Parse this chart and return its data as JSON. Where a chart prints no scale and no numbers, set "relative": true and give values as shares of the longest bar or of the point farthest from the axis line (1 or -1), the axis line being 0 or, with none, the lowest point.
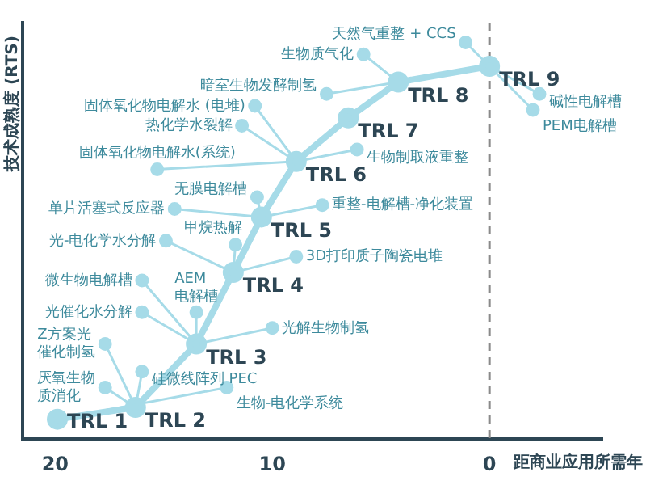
{
  "chart_data": {
    "type": "line",
    "relative": true,
    "ylabel": "技术成熟度 (RTS)",
    "xlabel": "距商业应用所需年",
    "xlim": [
      21.5,
      -5.2
    ],
    "xticks": [
      20,
      10,
      0
    ],
    "grid": false,
    "legend": false,
    "marker": "circle",
    "line_style": "solid",
    "ref_lines": [
      {
        "axis": "x",
        "value": 0,
        "color": "#8a8a8a",
        "line_style": "dashed"
      }
    ],
    "series": [
      {
        "color": "#a6dbe8",
        "x": [
          19.9,
          16.3,
          13.5,
          11.8,
          10.5,
          8.9,
          6.5,
          4.2,
          0
        ],
        "values": [
          0.05,
          0.08,
          0.24,
          0.42,
          0.56,
          0.7,
          0.81,
          0.9,
          0.94
        ]
      },
      {
        "color": "#a6dbe8",
        "x": [
          0,
          1.1
        ],
        "values": [
          0.94,
          1.0
        ]
      },
      {
        "color": "#a6dbe8",
        "x": [
          0,
          -2.3
        ],
        "values": [
          0.94,
          0.87
        ]
      },
      {
        "color": "#a6dbe8",
        "x": [
          0,
          -2.0
        ],
        "values": [
          0.94,
          0.83
        ]
      },
      {
        "color": "#a6dbe8",
        "x": [
          4.2,
          5.8
        ],
        "values": [
          0.9,
          0.97
        ]
      },
      {
        "color": "#a6dbe8",
        "x": [
          4.2,
          7.5
        ],
        "values": [
          0.9,
          0.87
        ]
      },
      {
        "color": "#a6dbe8",
        "x": [
          8.9,
          6.1
        ],
        "values": [
          0.7,
          0.73
        ]
      },
      {
        "color": "#a6dbe8",
        "x": [
          10.5,
          7.7
        ],
        "values": [
          0.56,
          0.59
        ]
      },
      {
        "color": "#a6dbe8",
        "x": [
          8.9,
          10.8
        ],
        "values": [
          0.7,
          0.84
        ]
      },
      {
        "color": "#a6dbe8",
        "x": [
          8.9,
          11.4
        ],
        "values": [
          0.7,
          0.79
        ]
      },
      {
        "color": "#a6dbe8",
        "x": [
          8.9,
          15.3
        ],
        "values": [
          0.7,
          0.68
        ]
      },
      {
        "color": "#a6dbe8",
        "x": [
          10.5,
          10.7
        ],
        "values": [
          0.56,
          0.61
        ]
      },
      {
        "color": "#a6dbe8",
        "x": [
          10.5,
          14.5
        ],
        "values": [
          0.56,
          0.58
        ]
      },
      {
        "color": "#a6dbe8",
        "x": [
          11.8,
          14.9
        ],
        "values": [
          0.42,
          0.5
        ]
      },
      {
        "color": "#a6dbe8",
        "x": [
          11.8,
          11.7
        ],
        "values": [
          0.42,
          0.49
        ]
      },
      {
        "color": "#a6dbe8",
        "x": [
          11.8,
          8.9
        ],
        "values": [
          0.42,
          0.46
        ]
      },
      {
        "color": "#a6dbe8",
        "x": [
          13.5,
          16.0
        ],
        "values": [
          0.24,
          0.4
        ]
      },
      {
        "color": "#a6dbe8",
        "x": [
          13.5,
          16.0
        ],
        "values": [
          0.24,
          0.32
        ]
      },
      {
        "color": "#a6dbe8",
        "x": [
          13.5,
          13.5
        ],
        "values": [
          0.24,
          0.32
        ]
      },
      {
        "color": "#a6dbe8",
        "x": [
          13.5,
          10.0
        ],
        "values": [
          0.24,
          0.28
        ]
      },
      {
        "color": "#a6dbe8",
        "x": [
          16.3,
          17.7
        ],
        "values": [
          0.08,
          0.24
        ]
      },
      {
        "color": "#a6dbe8",
        "x": [
          16.3,
          16.0
        ],
        "values": [
          0.08,
          0.17
        ]
      },
      {
        "color": "#a6dbe8",
        "x": [
          16.3,
          17.7
        ],
        "values": [
          0.08,
          0.13
        ]
      },
      {
        "color": "#a6dbe8",
        "x": [
          19.9,
          12.1
        ],
        "values": [
          0.05,
          0.13
        ]
      }
    ],
    "annotations": [
      {
        "text": "TRL 1",
        "x": 19.9,
        "y": 0.05
      },
      {
        "text": "TRL 2",
        "x": 16.3,
        "y": 0.08
      },
      {
        "text": "TRL 3",
        "x": 13.5,
        "y": 0.24
      },
      {
        "text": "TRL 4",
        "x": 11.8,
        "y": 0.42
      },
      {
        "text": "TRL 5",
        "x": 10.5,
        "y": 0.56
      },
      {
        "text": "TRL 6",
        "x": 8.9,
        "y": 0.7
      },
      {
        "text": "TRL 7",
        "x": 6.5,
        "y": 0.81
      },
      {
        "text": "TRL 8",
        "x": 4.2,
        "y": 0.9
      },
      {
        "text": "TRL 9",
        "x": 0,
        "y": 0.94
      },
      {
        "text": "天然气重整 + CCS",
        "x": 1.1,
        "y": 1.0
      },
      {
        "text": "碱性电解槽",
        "x": -2.3,
        "y": 0.87
      },
      {
        "text": "PEM电解槽",
        "x": -2.0,
        "y": 0.83
      },
      {
        "text": "生物质气化",
        "x": 5.8,
        "y": 0.97
      },
      {
        "text": "暗室生物发酵制氢",
        "x": 7.5,
        "y": 0.87
      },
      {
        "text": "生物制取液重整",
        "x": 6.1,
        "y": 0.73
      },
      {
        "text": "重整-电解槽-净化装置",
        "x": 7.7,
        "y": 0.59
      },
      {
        "text": "固体氧化物电解水 (电堆)",
        "x": 10.8,
        "y": 0.84
      },
      {
        "text": "热化学水裂解",
        "x": 11.4,
        "y": 0.79
      },
      {
        "text": "固体氧化物电解水(系统)",
        "x": 15.3,
        "y": 0.68
      },
      {
        "text": "无膜电解槽",
        "x": 10.7,
        "y": 0.61
      },
      {
        "text": "单片活塞式反应器",
        "x": 14.5,
        "y": 0.58
      },
      {
        "text": "光-电化学水分解",
        "x": 14.9,
        "y": 0.5
      },
      {
        "text": "甲烷热解",
        "x": 11.7,
        "y": 0.49
      },
      {
        "text": "3D打印质子陶瓷电堆",
        "x": 8.9,
        "y": 0.46
      },
      {
        "text": "微生物电解槽",
        "x": 16.0,
        "y": 0.4
      },
      {
        "text": "光催化水分解",
        "x": 16.0,
        "y": 0.32
      },
      {
        "text": "AEM电解槽",
        "x": 13.5,
        "y": 0.32
      },
      {
        "text": "光解生物制氢",
        "x": 10.0,
        "y": 0.28
      },
      {
        "text": "Z方案光催化制氢",
        "x": 17.7,
        "y": 0.24
      },
      {
        "text": "硅微线阵列 PEC",
        "x": 16.0,
        "y": 0.17
      },
      {
        "text": "厌氧生物质消化",
        "x": 17.7,
        "y": 0.13
      },
      {
        "text": "生物-电化学系统",
        "x": 12.1,
        "y": 0.13
      }
    ]
  }
}
